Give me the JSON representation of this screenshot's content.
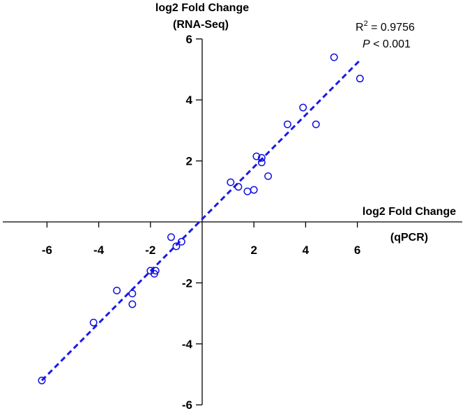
{
  "chart_data": {
    "type": "scatter",
    "y_title_line1": "log2 Fold Change",
    "y_title_line2": "(RNA-Seq)",
    "x_title_line1": "log2 Fold Change",
    "x_title_line2": "(qPCR)",
    "r2_prefix": "R",
    "r2_sup": "2",
    "r2_value": " = 0.9756",
    "p_label": "P",
    "p_value": " < 0.001",
    "xlim": [
      -7.8,
      7.8
    ],
    "ylim": [
      -6,
      6
    ],
    "x_ticks": [
      -6,
      -4,
      -2,
      2,
      4,
      6
    ],
    "y_ticks": [
      -6,
      -4,
      -2,
      2,
      4,
      6
    ],
    "x_tick_labels": [
      "-6",
      "-4",
      "-2",
      "2",
      "4",
      "6"
    ],
    "y_tick_labels": [
      "-6",
      "-4",
      "-2",
      "2",
      "4",
      "6"
    ],
    "fit_line": {
      "x": [
        -6.2,
        6.1
      ],
      "y": [
        -5.2,
        5.3
      ]
    },
    "points": [
      {
        "x": -6.2,
        "y": -5.2
      },
      {
        "x": -4.2,
        "y": -3.3
      },
      {
        "x": -3.3,
        "y": -2.25
      },
      {
        "x": -2.7,
        "y": -2.35
      },
      {
        "x": -2.7,
        "y": -2.7
      },
      {
        "x": -2.0,
        "y": -1.6
      },
      {
        "x": -1.85,
        "y": -1.7
      },
      {
        "x": -1.8,
        "y": -1.6
      },
      {
        "x": -1.2,
        "y": -0.5
      },
      {
        "x": -1.0,
        "y": -0.8
      },
      {
        "x": -0.8,
        "y": -0.65
      },
      {
        "x": 1.1,
        "y": 1.3
      },
      {
        "x": 1.4,
        "y": 1.15
      },
      {
        "x": 1.75,
        "y": 1.0
      },
      {
        "x": 2.0,
        "y": 1.05
      },
      {
        "x": 2.1,
        "y": 2.15
      },
      {
        "x": 2.3,
        "y": 2.1
      },
      {
        "x": 2.3,
        "y": 1.95
      },
      {
        "x": 2.55,
        "y": 1.5
      },
      {
        "x": 3.3,
        "y": 3.2
      },
      {
        "x": 3.9,
        "y": 3.75
      },
      {
        "x": 4.4,
        "y": 3.2
      },
      {
        "x": 5.1,
        "y": 5.4
      },
      {
        "x": 6.1,
        "y": 4.7
      }
    ],
    "marker_color": "#1010e0",
    "line_color": "#1a1ae6"
  }
}
